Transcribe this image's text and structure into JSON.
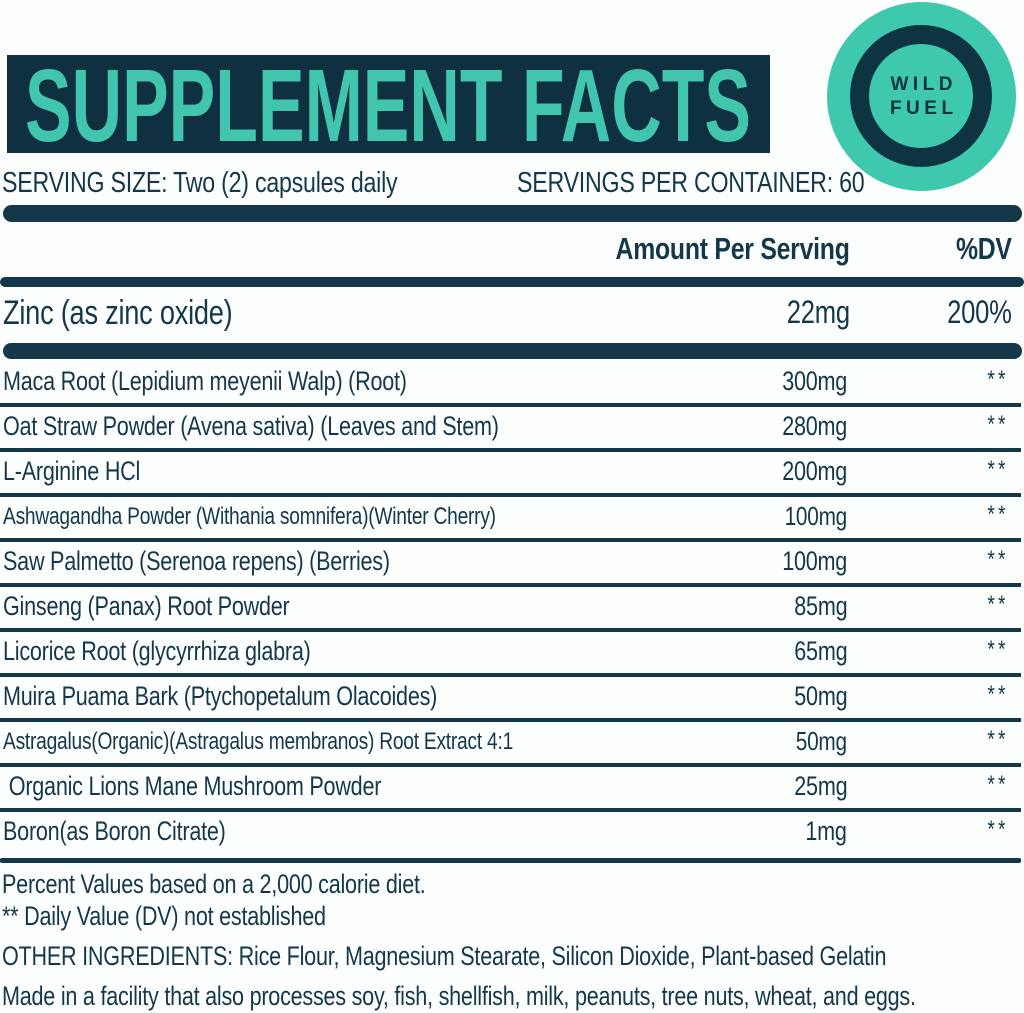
{
  "colors": {
    "navy_text": "#14384A",
    "banner_navy": "#0F3040",
    "teal": "#41C5AC",
    "logo_teal": "#3EC8AE",
    "logo_navy": "#0E3442"
  },
  "header": {
    "title": "SUPPLEMENT FACTS",
    "serving_size": "SERVING SIZE: Two (2) capsules daily",
    "servings_per_container": "SERVINGS PER CONTAINER: 60"
  },
  "logo": {
    "line1": "WILD",
    "line2": "FUEL"
  },
  "table": {
    "col_amount": "Amount Per Serving",
    "col_dv": "%DV",
    "primary_row": {
      "name": "Zinc (as zinc oxide)",
      "amount": "22mg",
      "dv": "200%"
    },
    "rows": [
      {
        "name": "Maca Root (Lepidium meyenii Walp) (Root)",
        "amount": "300mg",
        "dv": "**"
      },
      {
        "name": "Oat Straw Powder (Avena sativa) (Leaves and Stem)",
        "amount": "280mg",
        "dv": "**"
      },
      {
        "name": "L-Arginine HCl",
        "amount": "200mg",
        "dv": "**"
      },
      {
        "name": "Ashwagandha Powder (Withania somnifera)(Winter Cherry)",
        "amount": "100mg",
        "dv": "**"
      },
      {
        "name": "Saw Palmetto (Serenoa repens) (Berries)",
        "amount": "100mg",
        "dv": "**"
      },
      {
        "name": "Ginseng (Panax) Root Powder",
        "amount": "85mg",
        "dv": "**"
      },
      {
        "name": "Licorice Root (glycyrrhiza glabra)",
        "amount": "65mg",
        "dv": "**"
      },
      {
        "name": "Muira Puama Bark (Ptychopetalum Olacoides)",
        "amount": "50mg",
        "dv": "**"
      },
      {
        "name": "Astragalus(Organic)(Astragalus membranos) Root Extract 4:1",
        "amount": "50mg",
        "dv": "**"
      },
      {
        "name": " Organic Lions Mane Mushroom Powder",
        "amount": "25mg",
        "dv": "**"
      },
      {
        "name": "Boron(as Boron Citrate)",
        "amount": "1mg",
        "dv": "**"
      }
    ]
  },
  "footnotes": {
    "percent_values": "Percent Values based on a 2,000 calorie diet.",
    "daily_value": "** Daily Value (DV) not established",
    "other_ingredients": "OTHER INGREDIENTS: Rice Flour, Magnesium Stearate, Silicon Dioxide, Plant-based Gelatin",
    "allergen": "Made in a facility that also processes soy, fish, shellfish, milk, peanuts, tree nuts, wheat, and eggs."
  }
}
